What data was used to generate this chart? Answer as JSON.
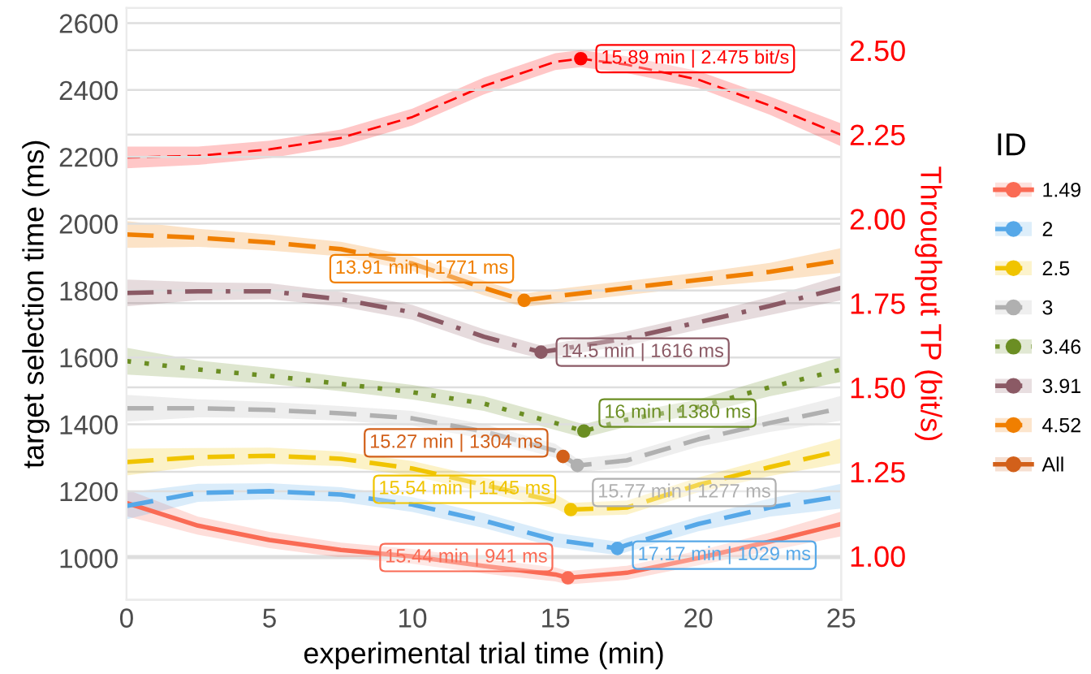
{
  "chart_data": {
    "type": "line",
    "xlabel": "experimental trial time (min)",
    "ylabel": "target selection time (ms)",
    "y2label": "Throughput TP (bit/s)",
    "legend_title": "ID",
    "legend": "right",
    "grid": true,
    "xlim": [
      0,
      25
    ],
    "xticks": [
      0,
      5,
      10,
      15,
      20,
      25
    ],
    "ylim": [
      875,
      2645
    ],
    "yticks": [
      1000,
      1200,
      1400,
      1600,
      1800,
      2000,
      2200,
      2400,
      2600
    ],
    "y2lim": [
      0.87,
      2.625
    ],
    "y2ticks": [
      {
        "value": 1.0,
        "label": "1.00"
      },
      {
        "value": 1.25,
        "label": "1.25"
      },
      {
        "value": 1.5,
        "label": "1.50"
      },
      {
        "value": 1.75,
        "label": "1.75"
      },
      {
        "value": 2.0,
        "label": "2.00"
      },
      {
        "value": 2.25,
        "label": "2.25"
      },
      {
        "value": 2.5,
        "label": "2.50"
      }
    ],
    "series": [
      {
        "name": "1.49",
        "color": "#fa6b55",
        "line_style": "solid",
        "x": [
          0,
          2.5,
          5,
          7.5,
          10,
          12.5,
          15,
          15.44,
          17.5,
          20,
          22.5,
          25
        ],
        "values": [
          1165,
          1097,
          1054,
          1024,
          1005,
          976,
          951,
          941,
          956,
          1000,
          1049,
          1102
        ],
        "lower": [
          1125,
          1070,
          1030,
          1002,
          983,
          954,
          930,
          921,
          935,
          978,
          1022,
          1065
        ],
        "upper": [
          1205,
          1124,
          1078,
          1046,
          1027,
          998,
          972,
          961,
          977,
          1022,
          1076,
          1139
        ],
        "value_labels": [
          null,
          null,
          null,
          null,
          null,
          null,
          null,
          "15.44 min | 941 ms",
          null,
          null,
          null,
          null
        ]
      },
      {
        "name": "2",
        "color": "#56a8e8",
        "line_style": "dashed",
        "x": [
          0,
          2.5,
          5,
          7.5,
          10,
          12.5,
          15,
          17.17,
          17.5,
          20,
          22.5,
          25
        ],
        "values": [
          1156,
          1195,
          1200,
          1190,
          1160,
          1112,
          1054,
          1029,
          1039,
          1102,
          1151,
          1185
        ],
        "lower": [
          1116,
          1168,
          1176,
          1168,
          1138,
          1090,
          1033,
          1009,
          1018,
          1080,
          1124,
          1148
        ],
        "upper": [
          1196,
          1222,
          1224,
          1212,
          1182,
          1134,
          1075,
          1049,
          1060,
          1124,
          1178,
          1222
        ],
        "value_labels": [
          null,
          null,
          null,
          null,
          null,
          null,
          null,
          "17.17 min | 1029 ms",
          null,
          null,
          null,
          null
        ]
      },
      {
        "name": "2.5",
        "color": "#f0c400",
        "line_style": "dashed",
        "x": [
          0,
          2.5,
          5,
          7.5,
          10,
          12.5,
          15,
          15.54,
          17.5,
          20,
          22.5,
          25
        ],
        "values": [
          1287,
          1302,
          1306,
          1297,
          1268,
          1219,
          1170,
          1145,
          1151,
          1219,
          1272,
          1321
        ],
        "lower": [
          1247,
          1275,
          1282,
          1275,
          1246,
          1197,
          1149,
          1125,
          1130,
          1197,
          1245,
          1284
        ],
        "upper": [
          1327,
          1329,
          1330,
          1319,
          1290,
          1241,
          1191,
          1165,
          1172,
          1241,
          1299,
          1358
        ],
        "value_labels": [
          null,
          null,
          null,
          null,
          null,
          null,
          null,
          "15.54 min | 1145 ms",
          null,
          null,
          null,
          null
        ]
      },
      {
        "name": "3",
        "color": "#b0b0b0",
        "line_style": "dashed",
        "x": [
          0,
          2.5,
          5,
          7.5,
          10,
          12.5,
          15,
          15.77,
          17.5,
          20,
          22.5,
          25
        ],
        "values": [
          1448,
          1448,
          1443,
          1433,
          1418,
          1379,
          1321,
          1277,
          1292,
          1355,
          1404,
          1448
        ],
        "lower": [
          1408,
          1421,
          1419,
          1411,
          1396,
          1357,
          1300,
          1257,
          1271,
          1333,
          1377,
          1411
        ],
        "upper": [
          1488,
          1475,
          1467,
          1455,
          1440,
          1401,
          1342,
          1297,
          1313,
          1377,
          1431,
          1485
        ],
        "value_labels": [
          null,
          null,
          null,
          null,
          null,
          null,
          null,
          "15.77 min | 1277 ms",
          null,
          null,
          null,
          null
        ]
      },
      {
        "name": "3.46",
        "color": "#6b8e23",
        "line_style": "dotted",
        "x": [
          0,
          2.5,
          5,
          7.5,
          10,
          12.5,
          15,
          16,
          17.5,
          20,
          22.5,
          25
        ],
        "values": [
          1589,
          1564,
          1545,
          1521,
          1496,
          1462,
          1404,
          1380,
          1414,
          1452,
          1511,
          1564
        ],
        "lower": [
          1549,
          1537,
          1521,
          1499,
          1474,
          1440,
          1383,
          1360,
          1393,
          1430,
          1484,
          1527
        ],
        "upper": [
          1629,
          1591,
          1569,
          1543,
          1518,
          1484,
          1425,
          1400,
          1435,
          1474,
          1538,
          1601
        ],
        "value_labels": [
          null,
          null,
          null,
          null,
          null,
          null,
          null,
          "16 min | 1380 ms",
          null,
          null,
          null,
          null
        ]
      },
      {
        "name": "3.91",
        "color": "#8b5a65",
        "line_style": "dashdot",
        "x": [
          0,
          2.5,
          5,
          7.5,
          10,
          12.5,
          14.5,
          17.5,
          20,
          22.5,
          25
        ],
        "values": [
          1793,
          1798,
          1798,
          1774,
          1735,
          1662,
          1616,
          1657,
          1705,
          1754,
          1808
        ],
        "lower": [
          1753,
          1771,
          1774,
          1752,
          1713,
          1640,
          1596,
          1636,
          1683,
          1727,
          1771
        ],
        "upper": [
          1833,
          1825,
          1822,
          1796,
          1757,
          1684,
          1636,
          1678,
          1727,
          1781,
          1845
        ],
        "value_labels": [
          null,
          null,
          null,
          null,
          null,
          null,
          "14.5 min | 1616 ms",
          null,
          null,
          null,
          null
        ]
      },
      {
        "name": "4.52",
        "color": "#f07f00",
        "line_style": "dashed",
        "x": [
          0,
          2.5,
          5,
          7.5,
          10,
          12.5,
          13.91,
          15,
          17.5,
          20,
          22.5,
          25
        ],
        "values": [
          1968,
          1958,
          1944,
          1924,
          1881,
          1808,
          1771,
          1783,
          1808,
          1832,
          1856,
          1890
        ],
        "lower": [
          1928,
          1931,
          1920,
          1902,
          1859,
          1786,
          1751,
          1762,
          1787,
          1810,
          1829,
          1853
        ],
        "upper": [
          2008,
          1985,
          1968,
          1946,
          1903,
          1830,
          1791,
          1804,
          1829,
          1854,
          1883,
          1927
        ],
        "value_labels": [
          null,
          null,
          null,
          null,
          null,
          null,
          "13.91 min | 1771 ms",
          null,
          null,
          null,
          null,
          null
        ]
      },
      {
        "name": "All",
        "type": "scatter",
        "color": "#d2601a",
        "x": [
          15.27
        ],
        "values": [
          1304
        ],
        "value_labels": [
          "15.27 min | 1304 ms"
        ]
      },
      {
        "axis": "y2",
        "color": "#ff0000",
        "line_style": "dashed",
        "x": [
          0,
          2.5,
          5,
          7.5,
          10,
          12.5,
          15,
          15.89,
          17.5,
          20,
          22.5,
          25
        ],
        "values": [
          2.182,
          2.187,
          2.206,
          2.24,
          2.302,
          2.394,
          2.466,
          2.475,
          2.457,
          2.413,
          2.336,
          2.249
        ],
        "lower": [
          2.15,
          2.16,
          2.18,
          2.215,
          2.277,
          2.369,
          2.441,
          2.45,
          2.432,
          2.388,
          2.309,
          2.215
        ],
        "upper": [
          2.214,
          2.214,
          2.232,
          2.265,
          2.327,
          2.419,
          2.491,
          2.5,
          2.482,
          2.438,
          2.363,
          2.283
        ],
        "value_labels": [
          null,
          null,
          null,
          null,
          null,
          null,
          null,
          "15.89 min | 2.475 bit/s",
          null,
          null,
          null,
          null
        ]
      }
    ]
  }
}
